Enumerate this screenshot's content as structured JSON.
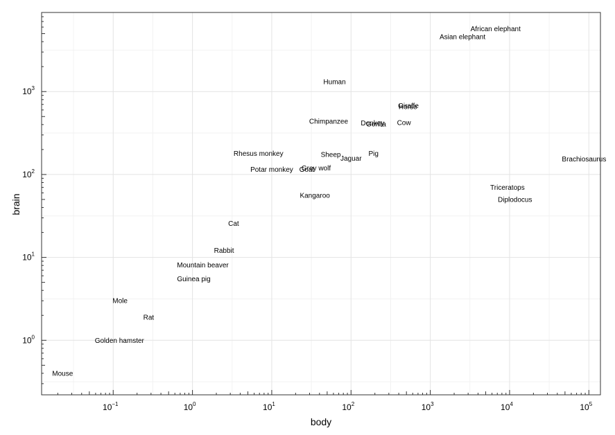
{
  "chart_data": {
    "type": "scatter",
    "title": "",
    "xlabel": "body",
    "ylabel": "brain",
    "xscale": "log10",
    "yscale": "log10",
    "xlim": [
      0.0125,
      140000
    ],
    "ylim": [
      0.22,
      9000
    ],
    "x_major_ticks": [
      {
        "base": "10",
        "exp": "−1",
        "value": 0.1
      },
      {
        "base": "10",
        "exp": "0",
        "value": 1
      },
      {
        "base": "10",
        "exp": "1",
        "value": 10
      },
      {
        "base": "10",
        "exp": "2",
        "value": 100
      },
      {
        "base": "10",
        "exp": "3",
        "value": 1000
      },
      {
        "base": "10",
        "exp": "4",
        "value": 10000
      },
      {
        "base": "10",
        "exp": "5",
        "value": 100000
      }
    ],
    "y_major_ticks": [
      {
        "base": "10",
        "exp": "0",
        "value": 1
      },
      {
        "base": "10",
        "exp": "1",
        "value": 10
      },
      {
        "base": "10",
        "exp": "2",
        "value": 100
      },
      {
        "base": "10",
        "exp": "3",
        "value": 1000
      }
    ],
    "grid": true,
    "points": [
      {
        "label": "Mountain beaver",
        "x": 1.35,
        "y": 8.1
      },
      {
        "label": "Cow",
        "x": 465,
        "y": 423
      },
      {
        "label": "Grey wolf",
        "x": 36.33,
        "y": 119.5
      },
      {
        "label": "Goat",
        "x": 27.66,
        "y": 115
      },
      {
        "label": "Guinea pig",
        "x": 1.04,
        "y": 5.5
      },
      {
        "label": "Diplodocus",
        "x": 11700,
        "y": 50
      },
      {
        "label": "Asian elephant",
        "x": 2547,
        "y": 4603
      },
      {
        "label": "Donkey",
        "x": 187.1,
        "y": 419
      },
      {
        "label": "Horse",
        "x": 521,
        "y": 655
      },
      {
        "label": "Potar monkey",
        "x": 10,
        "y": 115
      },
      {
        "label": "Cat",
        "x": 3.3,
        "y": 25.6
      },
      {
        "label": "Giraffe",
        "x": 529,
        "y": 680
      },
      {
        "label": "Gorilla",
        "x": 207,
        "y": 406
      },
      {
        "label": "Human",
        "x": 62,
        "y": 1320
      },
      {
        "label": "African elephant",
        "x": 6654,
        "y": 5712
      },
      {
        "label": "Triceratops",
        "x": 9400,
        "y": 70
      },
      {
        "label": "Rhesus monkey",
        "x": 6.8,
        "y": 179
      },
      {
        "label": "Kangaroo",
        "x": 35,
        "y": 56
      },
      {
        "label": "Golden hamster",
        "x": 0.12,
        "y": 1
      },
      {
        "label": "Mouse",
        "x": 0.023,
        "y": 0.4
      },
      {
        "label": "Rabbit",
        "x": 2.5,
        "y": 12.1
      },
      {
        "label": "Sheep",
        "x": 55.5,
        "y": 175
      },
      {
        "label": "Jaguar",
        "x": 100,
        "y": 157
      },
      {
        "label": "Chimpanzee",
        "x": 52.16,
        "y": 440
      },
      {
        "label": "Rat",
        "x": 0.28,
        "y": 1.9
      },
      {
        "label": "Brachiosaurus",
        "x": 87000,
        "y": 154.5
      },
      {
        "label": "Mole",
        "x": 0.122,
        "y": 3
      },
      {
        "label": "Pig",
        "x": 192,
        "y": 180
      }
    ]
  }
}
